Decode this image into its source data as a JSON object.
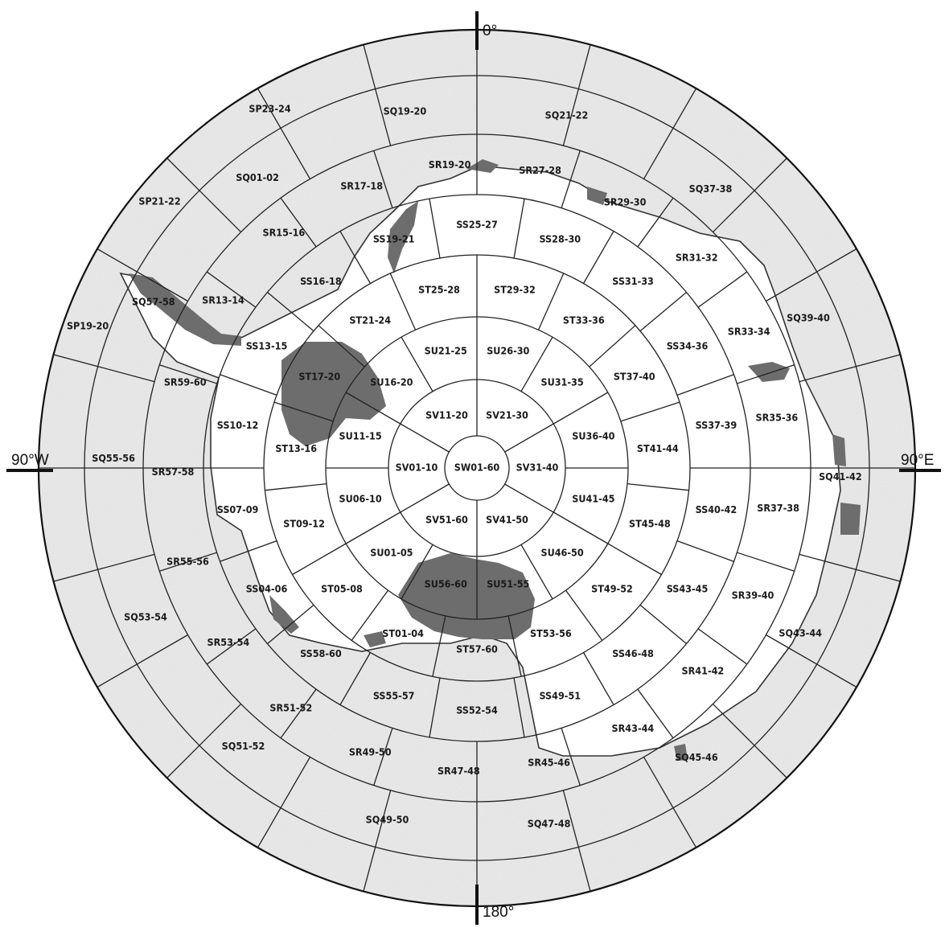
{
  "axes": {
    "top": "0°",
    "bottom": "180°",
    "left": "90°W",
    "right": "90°E"
  },
  "colors": {
    "background": "#ffffff",
    "ocean_shade": "#ececec",
    "ice_shelf_shade": "#6d6d6d",
    "grid": "#222222"
  },
  "rings": {
    "SW": [
      "SW01-60"
    ],
    "SV": [
      "SV21-30",
      "SV31-40",
      "SV41-50",
      "SV51-60",
      "SV01-10",
      "SV11-20"
    ],
    "SU": [
      "SU26-30",
      "SU31-35",
      "SU36-40",
      "SU41-45",
      "SU46-50",
      "SU51-55",
      "SU56-60",
      "SU01-05",
      "SU06-10",
      "SU11-15",
      "SU16-20",
      "SU21-25"
    ],
    "ST": [
      "ST29-32",
      "ST33-36",
      "ST37-40",
      "ST41-44",
      "ST45-48",
      "ST49-52",
      "ST53-56",
      "ST57-60",
      "ST01-04",
      "ST05-08",
      "ST09-12",
      "ST13-16",
      "ST17-20",
      "ST21-24",
      "ST25-28"
    ],
    "SS": [
      "SS28-30",
      "SS31-33",
      "SS34-36",
      "SS37-39",
      "SS40-42",
      "SS43-45",
      "SS46-48",
      "SS49-51",
      "SS52-54",
      "SS55-57",
      "SS58-60",
      "SS04-06",
      "SS07-09",
      "SS10-12",
      "SS13-15",
      "SS16-18",
      "SS19-21",
      "SS25-27"
    ],
    "SR": [
      "SR27-28",
      "SR29-30",
      "SR31-32",
      "SR33-34",
      "SR35-36",
      "SR37-38",
      "SR39-40",
      "SR41-42",
      "SR43-44",
      "SR45-46",
      "SR47-48",
      "SR49-50",
      "SR51-52",
      "SR53-54",
      "SR55-56",
      "SR57-58",
      "SR59-60",
      "SR13-14",
      "SR15-16",
      "SR17-18",
      "SR19-20"
    ],
    "SQ": [
      "SQ37-38",
      "SQ39-40",
      "SQ41-42",
      "SQ43-44",
      "SQ45-46",
      "SQ47-48",
      "SQ49-50",
      "SQ51-52",
      "SQ53-54",
      "SQ55-56",
      "SQ57-58",
      "SQ01-02",
      "SQ19-20",
      "SQ21-22"
    ],
    "SP": [
      "SP19-20",
      "SP21-22",
      "SP23-24"
    ]
  }
}
